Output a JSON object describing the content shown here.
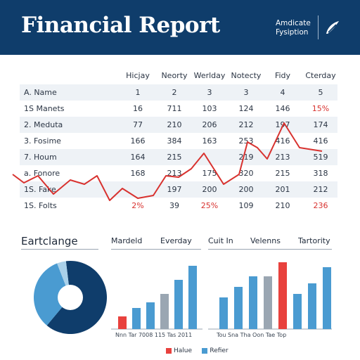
{
  "header": {
    "title": "Financial Report",
    "brand_line1": "Amdicate",
    "brand_line2": "Fysiption",
    "logo_icon": "leaf-swoosh-icon"
  },
  "table": {
    "columns": [
      "Hicjay",
      "Neorty",
      "Werlday",
      "Notecty",
      "Fidy",
      "Cterday"
    ],
    "rows": [
      {
        "label": "A. Name",
        "values": [
          "1",
          "2",
          "3",
          "3",
          "4",
          "5"
        ],
        "red": []
      },
      {
        "label": "1S Manets",
        "values": [
          "16",
          "711",
          "103",
          "124",
          "146",
          "15%"
        ],
        "red": [
          5
        ]
      },
      {
        "label": "2. Meduta",
        "values": [
          "77",
          "210",
          "206",
          "212",
          "197",
          "174"
        ],
        "red": []
      },
      {
        "label": "3. Fosime",
        "values": [
          "166",
          "384",
          "163",
          "253",
          "416",
          "416"
        ],
        "red": []
      },
      {
        "label": "7. Houm",
        "values": [
          "164",
          "215",
          "",
          "219",
          "213",
          "519"
        ],
        "red": []
      },
      {
        "label": "a. Fonore",
        "values": [
          "168",
          "213",
          "175",
          "320",
          "215",
          "318"
        ],
        "red": []
      },
      {
        "label": "1S. Fake",
        "values": [
          "",
          "197",
          "200",
          "200",
          "201",
          "212"
        ],
        "red": []
      },
      {
        "label": "1S. Folts",
        "values": [
          "2%",
          "39",
          "25%",
          "109",
          "210",
          "236"
        ],
        "red": [
          0,
          2,
          5
        ]
      }
    ],
    "trend_color": "#d8322f"
  },
  "charts": {
    "pie_title": "Eartclange",
    "pie": {
      "type": "pie",
      "slices": [
        63,
        33,
        4
      ],
      "colors": [
        "#0f3d6b",
        "#4a9bd1",
        "#a9d1ea"
      ]
    },
    "bar1_headers": [
      "Mardeld",
      "Everday"
    ],
    "bar2_headers": [
      "Cuit In",
      "Velenns",
      "Tartority"
    ],
    "bar1_ticks": "Nnn Tar 7008 115 Tas 2011",
    "bar2_ticks": "Tou Sna Tha Oon Tae Top",
    "legend": [
      "Halue",
      "Refier"
    ],
    "colors": {
      "blue": "#4a9bd1",
      "red": "#e8413d",
      "grey": "#9aa6b2"
    }
  },
  "chart_data": [
    {
      "type": "bar",
      "title": "",
      "xlabel": "",
      "ylabel": "",
      "values": [
        18,
        30,
        38,
        50,
        70,
        90
      ],
      "colors": [
        "red",
        "blue",
        "blue",
        "grey",
        "blue",
        "blue"
      ]
    },
    {
      "type": "bar",
      "title": "",
      "xlabel": "",
      "ylabel": "",
      "values": [
        45,
        60,
        75,
        75,
        95,
        50,
        65,
        88
      ],
      "colors": [
        "blue",
        "blue",
        "blue",
        "grey",
        "red",
        "blue",
        "blue",
        "blue"
      ]
    }
  ]
}
